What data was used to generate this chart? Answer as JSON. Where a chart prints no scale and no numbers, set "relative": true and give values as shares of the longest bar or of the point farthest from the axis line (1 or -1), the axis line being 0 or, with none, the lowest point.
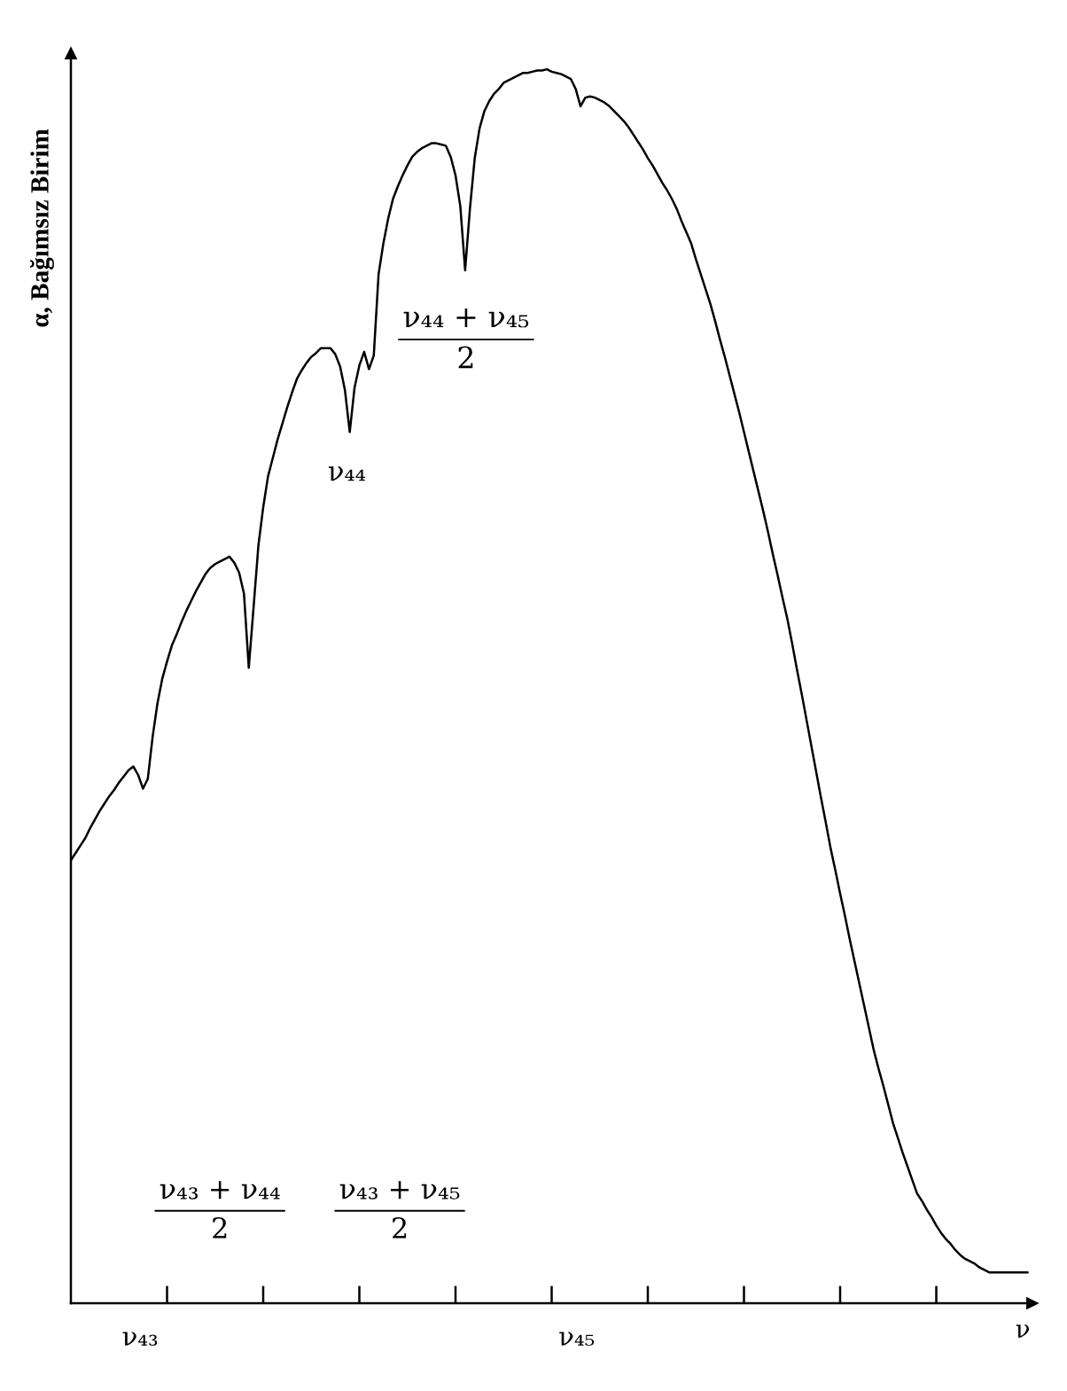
{
  "chart_data": {
    "type": "line",
    "relative": true,
    "xlabel": "ν",
    "ylabel": "α, Bağımsız Birim",
    "color": "#000000",
    "categories": [
      null,
      null,
      null,
      null,
      null,
      null,
      null,
      null,
      null,
      null,
      null,
      null,
      null,
      null,
      null,
      null,
      null,
      null,
      null,
      null,
      null,
      null,
      null,
      null,
      null,
      null,
      null,
      null,
      null,
      null,
      null,
      null,
      null,
      null,
      null,
      null,
      null,
      null,
      null,
      null,
      null,
      null,
      null,
      null,
      null,
      null,
      null,
      null,
      null,
      null,
      null,
      null,
      null,
      null,
      null,
      null,
      null,
      null,
      null,
      null,
      null,
      null,
      null,
      null,
      null,
      null,
      null,
      null,
      null,
      null,
      null,
      null,
      null,
      null,
      null,
      null,
      null,
      null,
      null,
      null,
      null,
      null,
      null,
      null,
      null,
      null,
      null,
      null,
      null,
      null,
      null,
      null,
      null,
      null,
      null,
      null,
      null,
      null,
      null,
      null,
      null,
      null,
      null,
      null,
      null,
      null,
      null,
      null,
      null,
      null,
      null,
      null,
      null,
      null,
      null,
      null,
      null,
      null,
      null,
      null,
      null,
      null,
      null,
      null,
      null,
      null,
      null,
      null,
      null,
      null,
      null,
      null,
      null,
      null,
      null,
      null,
      null,
      null,
      null,
      null,
      null,
      null,
      null,
      null,
      null,
      null,
      null,
      null,
      null,
      null,
      null,
      null,
      null,
      null,
      null,
      null,
      null,
      null,
      null,
      null,
      null,
      null,
      null,
      null,
      null,
      null,
      null,
      null,
      null,
      null,
      null,
      null,
      null,
      null,
      null,
      null,
      null,
      null,
      null,
      null,
      null,
      null,
      null,
      null,
      null,
      null,
      null,
      null,
      null,
      null,
      null,
      null,
      null,
      null,
      null,
      null,
      null,
      null,
      null,
      null
    ],
    "values": [
      0.359,
      0.365,
      0.371,
      0.377,
      0.385,
      0.392,
      0.399,
      0.405,
      0.411,
      0.416,
      0.422,
      0.427,
      0.432,
      0.435,
      0.428,
      0.417,
      0.425,
      0.459,
      0.486,
      0.506,
      0.52,
      0.533,
      0.542,
      0.552,
      0.561,
      0.569,
      0.577,
      0.584,
      0.591,
      0.596,
      0.599,
      0.601,
      0.603,
      0.605,
      0.6,
      0.592,
      0.575,
      0.515,
      0.564,
      0.614,
      0.645,
      0.67,
      0.685,
      0.7,
      0.713,
      0.726,
      0.738,
      0.749,
      0.756,
      0.762,
      0.767,
      0.77,
      0.774,
      0.774,
      0.774,
      0.769,
      0.759,
      0.74,
      0.706,
      0.742,
      0.76,
      0.771,
      0.757,
      0.768,
      0.834,
      0.859,
      0.879,
      0.895,
      0.905,
      0.914,
      0.922,
      0.929,
      0.933,
      0.936,
      0.938,
      0.94,
      0.94,
      0.939,
      0.938,
      0.929,
      0.914,
      0.889,
      0.837,
      0.887,
      0.928,
      0.952,
      0.966,
      0.974,
      0.98,
      0.984,
      0.989,
      0.991,
      0.993,
      0.995,
      0.997,
      0.997,
      0.998,
      0.999,
      0.999,
      1.0,
      0.998,
      0.997,
      0.996,
      0.994,
      0.992,
      0.984,
      0.97,
      0.977,
      0.978,
      0.977,
      0.975,
      0.973,
      0.97,
      0.966,
      0.962,
      0.958,
      0.953,
      0.947,
      0.941,
      0.935,
      0.928,
      0.922,
      0.915,
      0.908,
      0.902,
      0.895,
      0.887,
      0.877,
      0.868,
      0.859,
      0.846,
      0.834,
      0.822,
      0.81,
      0.796,
      0.781,
      0.767,
      0.752,
      0.737,
      0.722,
      0.706,
      0.69,
      0.674,
      0.658,
      0.642,
      0.625,
      0.607,
      0.59,
      0.572,
      0.555,
      0.535,
      0.514,
      0.494,
      0.473,
      0.452,
      0.431,
      0.41,
      0.39,
      0.369,
      0.351,
      0.332,
      0.314,
      0.295,
      0.277,
      0.259,
      0.241,
      0.223,
      0.205,
      0.19,
      0.176,
      0.161,
      0.146,
      0.134,
      0.122,
      0.111,
      0.1,
      0.089,
      0.083,
      0.076,
      0.07,
      0.063,
      0.057,
      0.052,
      0.048,
      0.043,
      0.039,
      0.036,
      0.034,
      0.032,
      0.029,
      0.027,
      0.025,
      0.025,
      0.025,
      0.025,
      0.025,
      0.025,
      0.025,
      0.025,
      0.025
    ],
    "annotations": [
      "ν₄₃",
      "ν₄₃ + ν₄₄\n2",
      "ν₄₃ + ν₄₅\n2",
      "ν₄₅",
      "ν₄₄",
      "ν₄₄ + ν₄₅\n2"
    ]
  }
}
